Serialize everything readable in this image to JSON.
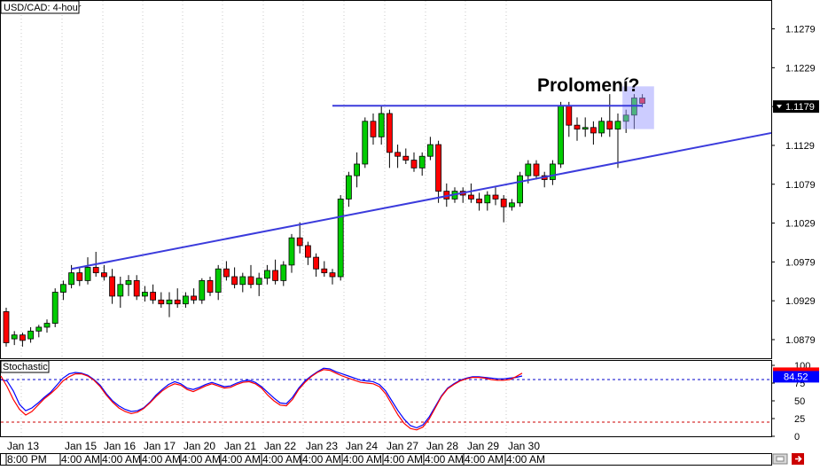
{
  "window": {
    "title": "USD/CAD: 4-hour",
    "indicator_label": "Stochastic",
    "annotation": "Prolomení?"
  },
  "colors": {
    "bull": "#00cc00",
    "bear": "#ff0000",
    "wick": "#000000",
    "trendline": "#3b3bdc",
    "highlight": "#9999ff",
    "price_tag_bg": "#000000",
    "stoch_k": "#0000ff",
    "stoch_d": "#ff0000",
    "level_80": "#0000cc",
    "level_20": "#cc0000",
    "stoch_tag_bg": "#0000ff"
  },
  "icons": {
    "scroll_box": "scroll-box-icon",
    "arrow": "right-arrow-icon"
  },
  "chart_data": [
    {
      "type": "candlestick",
      "title": "USD/CAD: 4-hour",
      "ylim": [
        1.0855,
        1.1315
      ],
      "y_ticks": [
        "1.1279",
        "1.1229",
        "1.1179",
        "1.1129",
        "1.1079",
        "1.1029",
        "1.0979",
        "1.0929",
        "1.0879"
      ],
      "last_price": "1.1179",
      "x_labels_top": [
        "Jan 13",
        "Jan 15",
        "Jan 16",
        "Jan 17",
        "Jan 20",
        "Jan 21",
        "Jan 22",
        "Jan 23",
        "Jan 24",
        "Jan 27",
        "Jan 28",
        "Jan 29",
        "Jan 30"
      ],
      "x_labels_bottom": [
        "8:00 PM",
        "4:00 AM",
        "4:00 AM",
        "4:00 AM",
        "4:00 AM",
        "4:00 AM",
        "4:00 AM",
        "4:00 AM",
        "4:00 AM",
        "4:00 AM",
        "4:00 AM",
        "4:00 AM",
        "4:00 AM"
      ],
      "candles": [
        [
          1.0915,
          1.092,
          1.087,
          1.0875
        ],
        [
          1.088,
          1.089,
          1.0872,
          1.0885
        ],
        [
          1.0885,
          1.0888,
          1.087,
          1.0878
        ],
        [
          1.088,
          1.0895,
          1.0875,
          1.089
        ],
        [
          1.089,
          1.0898,
          1.0882,
          1.0895
        ],
        [
          1.0895,
          1.0905,
          1.0888,
          1.09
        ],
        [
          1.09,
          1.0945,
          1.0895,
          1.094
        ],
        [
          1.094,
          1.0955,
          1.093,
          1.095
        ],
        [
          1.095,
          1.0975,
          1.0945,
          1.0965
        ],
        [
          1.0965,
          1.0972,
          1.0948,
          1.0955
        ],
        [
          1.0955,
          1.0985,
          1.095,
          1.0972
        ],
        [
          1.0972,
          1.0992,
          1.096,
          1.0965
        ],
        [
          1.0965,
          1.0975,
          1.0955,
          1.096
        ],
        [
          1.096,
          1.097,
          1.0925,
          1.0935
        ],
        [
          1.0935,
          1.096,
          1.092,
          1.095
        ],
        [
          1.095,
          1.0962,
          1.0935,
          1.0955
        ],
        [
          1.0955,
          1.0962,
          1.093,
          1.0935
        ],
        [
          1.0935,
          1.0948,
          1.0928,
          1.094
        ],
        [
          1.094,
          1.095,
          1.0925,
          1.093
        ],
        [
          1.093,
          1.094,
          1.092,
          1.0925
        ],
        [
          1.0925,
          1.094,
          1.0908,
          1.093
        ],
        [
          1.093,
          1.0945,
          1.092,
          1.0925
        ],
        [
          1.0925,
          1.094,
          1.092,
          1.0935
        ],
        [
          1.0935,
          1.0945,
          1.0925,
          1.093
        ],
        [
          1.093,
          1.0958,
          1.0925,
          1.0955
        ],
        [
          1.0955,
          1.096,
          1.0935,
          1.094
        ],
        [
          1.094,
          1.0975,
          1.093,
          1.097
        ],
        [
          1.097,
          1.098,
          1.0955,
          1.096
        ],
        [
          1.096,
          1.0972,
          1.0945,
          1.095
        ],
        [
          1.095,
          1.0965,
          1.094,
          1.096
        ],
        [
          1.096,
          1.0975,
          1.0945,
          1.095
        ],
        [
          1.095,
          1.0965,
          1.0935,
          1.0958
        ],
        [
          1.0958,
          1.0975,
          1.095,
          1.0968
        ],
        [
          1.0968,
          1.0982,
          1.095,
          1.0955
        ],
        [
          1.0955,
          1.098,
          1.0948,
          1.0975
        ],
        [
          1.0975,
          1.1015,
          1.0965,
          1.101
        ],
        [
          1.101,
          1.103,
          1.099,
          1.1
        ],
        [
          1.1,
          1.1005,
          1.0975,
          1.0985
        ],
        [
          1.0985,
          1.099,
          1.096,
          1.097
        ],
        [
          1.097,
          1.098,
          1.096,
          1.0965
        ],
        [
          1.0965,
          1.097,
          1.095,
          1.096
        ],
        [
          1.096,
          1.1065,
          1.0955,
          1.106
        ],
        [
          1.106,
          1.1095,
          1.105,
          1.109
        ],
        [
          1.109,
          1.112,
          1.1075,
          1.1105
        ],
        [
          1.1105,
          1.1165,
          1.11,
          1.116
        ],
        [
          1.116,
          1.117,
          1.113,
          1.114
        ],
        [
          1.114,
          1.118,
          1.113,
          1.117
        ],
        [
          1.117,
          1.1175,
          1.11,
          1.112
        ],
        [
          1.112,
          1.113,
          1.11,
          1.1115
        ],
        [
          1.1115,
          1.1125,
          1.1105,
          1.111
        ],
        [
          1.111,
          1.112,
          1.1095,
          1.11
        ],
        [
          1.11,
          1.112,
          1.109,
          1.1115
        ],
        [
          1.1115,
          1.114,
          1.111,
          1.113
        ],
        [
          1.113,
          1.1135,
          1.1055,
          1.107
        ],
        [
          1.107,
          1.108,
          1.105,
          1.106
        ],
        [
          1.106,
          1.1075,
          1.1055,
          1.107
        ],
        [
          1.107,
          1.1075,
          1.1055,
          1.1065
        ],
        [
          1.1065,
          1.108,
          1.1055,
          1.106
        ],
        [
          1.106,
          1.1068,
          1.1045,
          1.1055
        ],
        [
          1.1055,
          1.107,
          1.1045,
          1.1065
        ],
        [
          1.1065,
          1.1075,
          1.1052,
          1.106
        ],
        [
          1.106,
          1.1065,
          1.103,
          1.105
        ],
        [
          1.105,
          1.106,
          1.1045,
          1.1055
        ],
        [
          1.1055,
          1.1095,
          1.105,
          1.109
        ],
        [
          1.109,
          1.111,
          1.108,
          1.1105
        ],
        [
          1.1105,
          1.111,
          1.1085,
          1.109
        ],
        [
          1.109,
          1.1095,
          1.1075,
          1.1085
        ],
        [
          1.1085,
          1.111,
          1.1078,
          1.1105
        ],
        [
          1.1105,
          1.1185,
          1.11,
          1.118
        ],
        [
          1.118,
          1.1185,
          1.114,
          1.1155
        ],
        [
          1.1155,
          1.1165,
          1.1135,
          1.115
        ],
        [
          1.115,
          1.1165,
          1.114,
          1.1152
        ],
        [
          1.1152,
          1.116,
          1.113,
          1.1145
        ],
        [
          1.1145,
          1.1165,
          1.114,
          1.116
        ],
        [
          1.116,
          1.1195,
          1.114,
          1.115
        ],
        [
          1.115,
          1.117,
          1.11,
          1.116
        ],
        [
          1.116,
          1.1175,
          1.1145,
          1.1168
        ],
        [
          1.1168,
          1.1195,
          1.115,
          1.119
        ],
        [
          1.119,
          1.1195,
          1.1178,
          1.1183
        ]
      ],
      "trendlines": [
        {
          "name": "resistance",
          "from": {
            "index": 40,
            "price": 1.118
          },
          "to": {
            "index": 78,
            "price": 1.118
          }
        },
        {
          "name": "rising support",
          "from": {
            "index": 8,
            "price": 1.097
          },
          "to": {
            "index": 114,
            "price": 1.1145
          }
        }
      ],
      "highlight": {
        "from_index": 76,
        "to_index": 79,
        "price_low": 1.115,
        "price_high": 1.1205
      }
    },
    {
      "type": "line",
      "title": "Stochastic",
      "ylim": [
        0,
        100
      ],
      "y_ticks": [
        "100",
        "75",
        "50",
        "25",
        "0"
      ],
      "levels": [
        80,
        20
      ],
      "current_value": "84.52",
      "series": [
        {
          "name": "",
          "values": [
            80,
            78,
            64,
            45,
            36,
            40,
            47,
            55,
            62,
            72,
            82,
            88,
            90,
            89,
            86,
            80,
            72,
            60,
            50,
            43,
            38,
            35,
            36,
            40,
            48,
            58,
            66,
            73,
            77,
            74,
            68,
            66,
            69,
            73,
            76,
            73,
            70,
            71,
            75,
            78,
            79,
            76,
            70,
            62,
            54,
            47,
            46,
            55,
            68,
            78,
            85,
            91,
            96,
            95,
            91,
            88,
            85,
            82,
            79,
            78,
            77,
            73,
            64,
            50,
            36,
            24,
            15,
            12,
            16,
            27,
            42,
            57,
            68,
            74,
            79,
            82,
            84,
            84,
            83,
            82,
            81,
            81,
            82,
            83,
            85
          ]
        },
        {
          "name": "",
          "values": [
            85,
            70,
            52,
            38,
            30,
            35,
            44,
            53,
            60,
            68,
            78,
            84,
            88,
            88,
            85,
            79,
            70,
            58,
            48,
            40,
            35,
            32,
            34,
            39,
            47,
            56,
            64,
            70,
            74,
            72,
            66,
            63,
            67,
            71,
            74,
            71,
            68,
            69,
            73,
            76,
            77,
            74,
            68,
            58,
            50,
            44,
            43,
            52,
            66,
            76,
            84,
            90,
            94,
            93,
            89,
            85,
            82,
            79,
            76,
            75,
            74,
            70,
            60,
            45,
            30,
            18,
            11,
            9,
            13,
            24,
            40,
            56,
            67,
            73,
            78,
            81,
            83,
            83,
            82,
            80,
            79,
            79,
            80,
            84,
            89
          ]
        }
      ]
    }
  ]
}
